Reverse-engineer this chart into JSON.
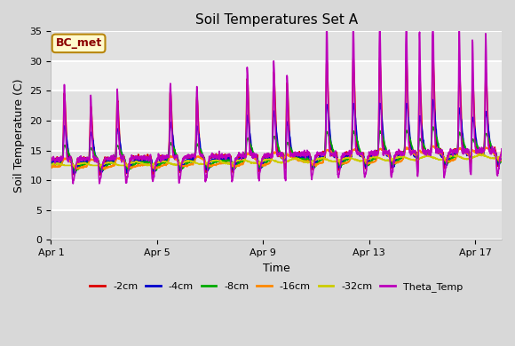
{
  "title": "Soil Temperatures Set A",
  "xlabel": "Time",
  "ylabel": "Soil Temperature (C)",
  "ylim": [
    0,
    35
  ],
  "annotation_label": "BC_met",
  "annotation_color": "#8B0000",
  "annotation_bg": "#FFFACD",
  "annotation_border": "#B8860B",
  "figure_bg": "#d8d8d8",
  "plot_bg": "#f0f0f0",
  "grid_color": "white",
  "series": [
    {
      "label": "-2cm",
      "color": "#dd0000",
      "lw": 1.2
    },
    {
      "label": "-4cm",
      "color": "#0000cc",
      "lw": 1.2
    },
    {
      "label": "-8cm",
      "color": "#00aa00",
      "lw": 1.2
    },
    {
      "label": "-16cm",
      "color": "#ff8800",
      "lw": 1.2
    },
    {
      "label": "-32cm",
      "color": "#cccc00",
      "lw": 1.2
    },
    {
      "label": "Theta_Temp",
      "color": "#bb00bb",
      "lw": 1.2
    }
  ],
  "xtick_labels": [
    "Apr 1",
    "Apr 5",
    "Apr 9",
    "Apr 13",
    "Apr 17"
  ],
  "xtick_positions": [
    0,
    4,
    8,
    12,
    16
  ],
  "ytick_positions": [
    0,
    5,
    10,
    15,
    20,
    25,
    30,
    35
  ],
  "title_fontsize": 11,
  "label_fontsize": 9,
  "tick_fontsize": 8,
  "legend_fontsize": 8
}
